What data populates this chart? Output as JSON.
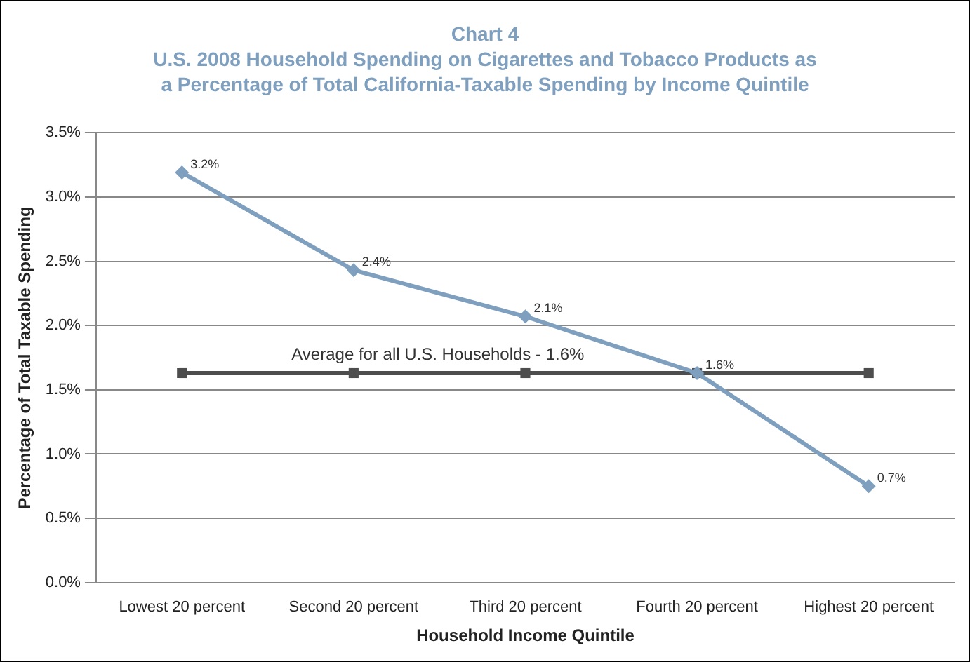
{
  "chart_data": {
    "type": "line",
    "title": "Chart 4",
    "subtitle": "U.S. 2008 Household Spending on Cigarettes and Tobacco Products as a Percentage of Total California-Taxable Spending by Income Quintile",
    "xlabel": "Household Income Quintile",
    "ylabel": "Percentage of Total Taxable Spending",
    "categories": [
      "Lowest 20 percent",
      "Second 20 percent",
      "Third 20 percent",
      "Fourth 20 percent",
      "Highest 20 percent"
    ],
    "series": [
      {
        "color": "#7f9fbf",
        "marker": "diamond",
        "values": [
          3.19,
          2.43,
          2.07,
          1.63,
          0.75
        ],
        "value_labels": [
          "3.2%",
          "2.4%",
          "2.1%",
          "1.6%",
          "0.7%"
        ]
      },
      {
        "name": "Average for all U.S. Households - 1.6%",
        "color": "#4d4d4d",
        "marker": "square",
        "values": [
          1.63,
          1.63,
          1.63,
          1.63,
          1.63
        ]
      }
    ],
    "ylim": [
      0,
      3.5
    ],
    "yticks": [
      {
        "value": 0,
        "label": "0.0%"
      },
      {
        "value": 0.5,
        "label": "0.5%"
      },
      {
        "value": 1,
        "label": "1.0%"
      },
      {
        "value": 1.5,
        "label": "1.5%"
      },
      {
        "value": 2,
        "label": "2.0%"
      },
      {
        "value": 2.5,
        "label": "2.5%"
      },
      {
        "value": 3,
        "label": "3.0%"
      },
      {
        "value": 3.5,
        "label": "3.5%"
      }
    ],
    "grid": "y",
    "legend": false,
    "line_style": "solid"
  }
}
